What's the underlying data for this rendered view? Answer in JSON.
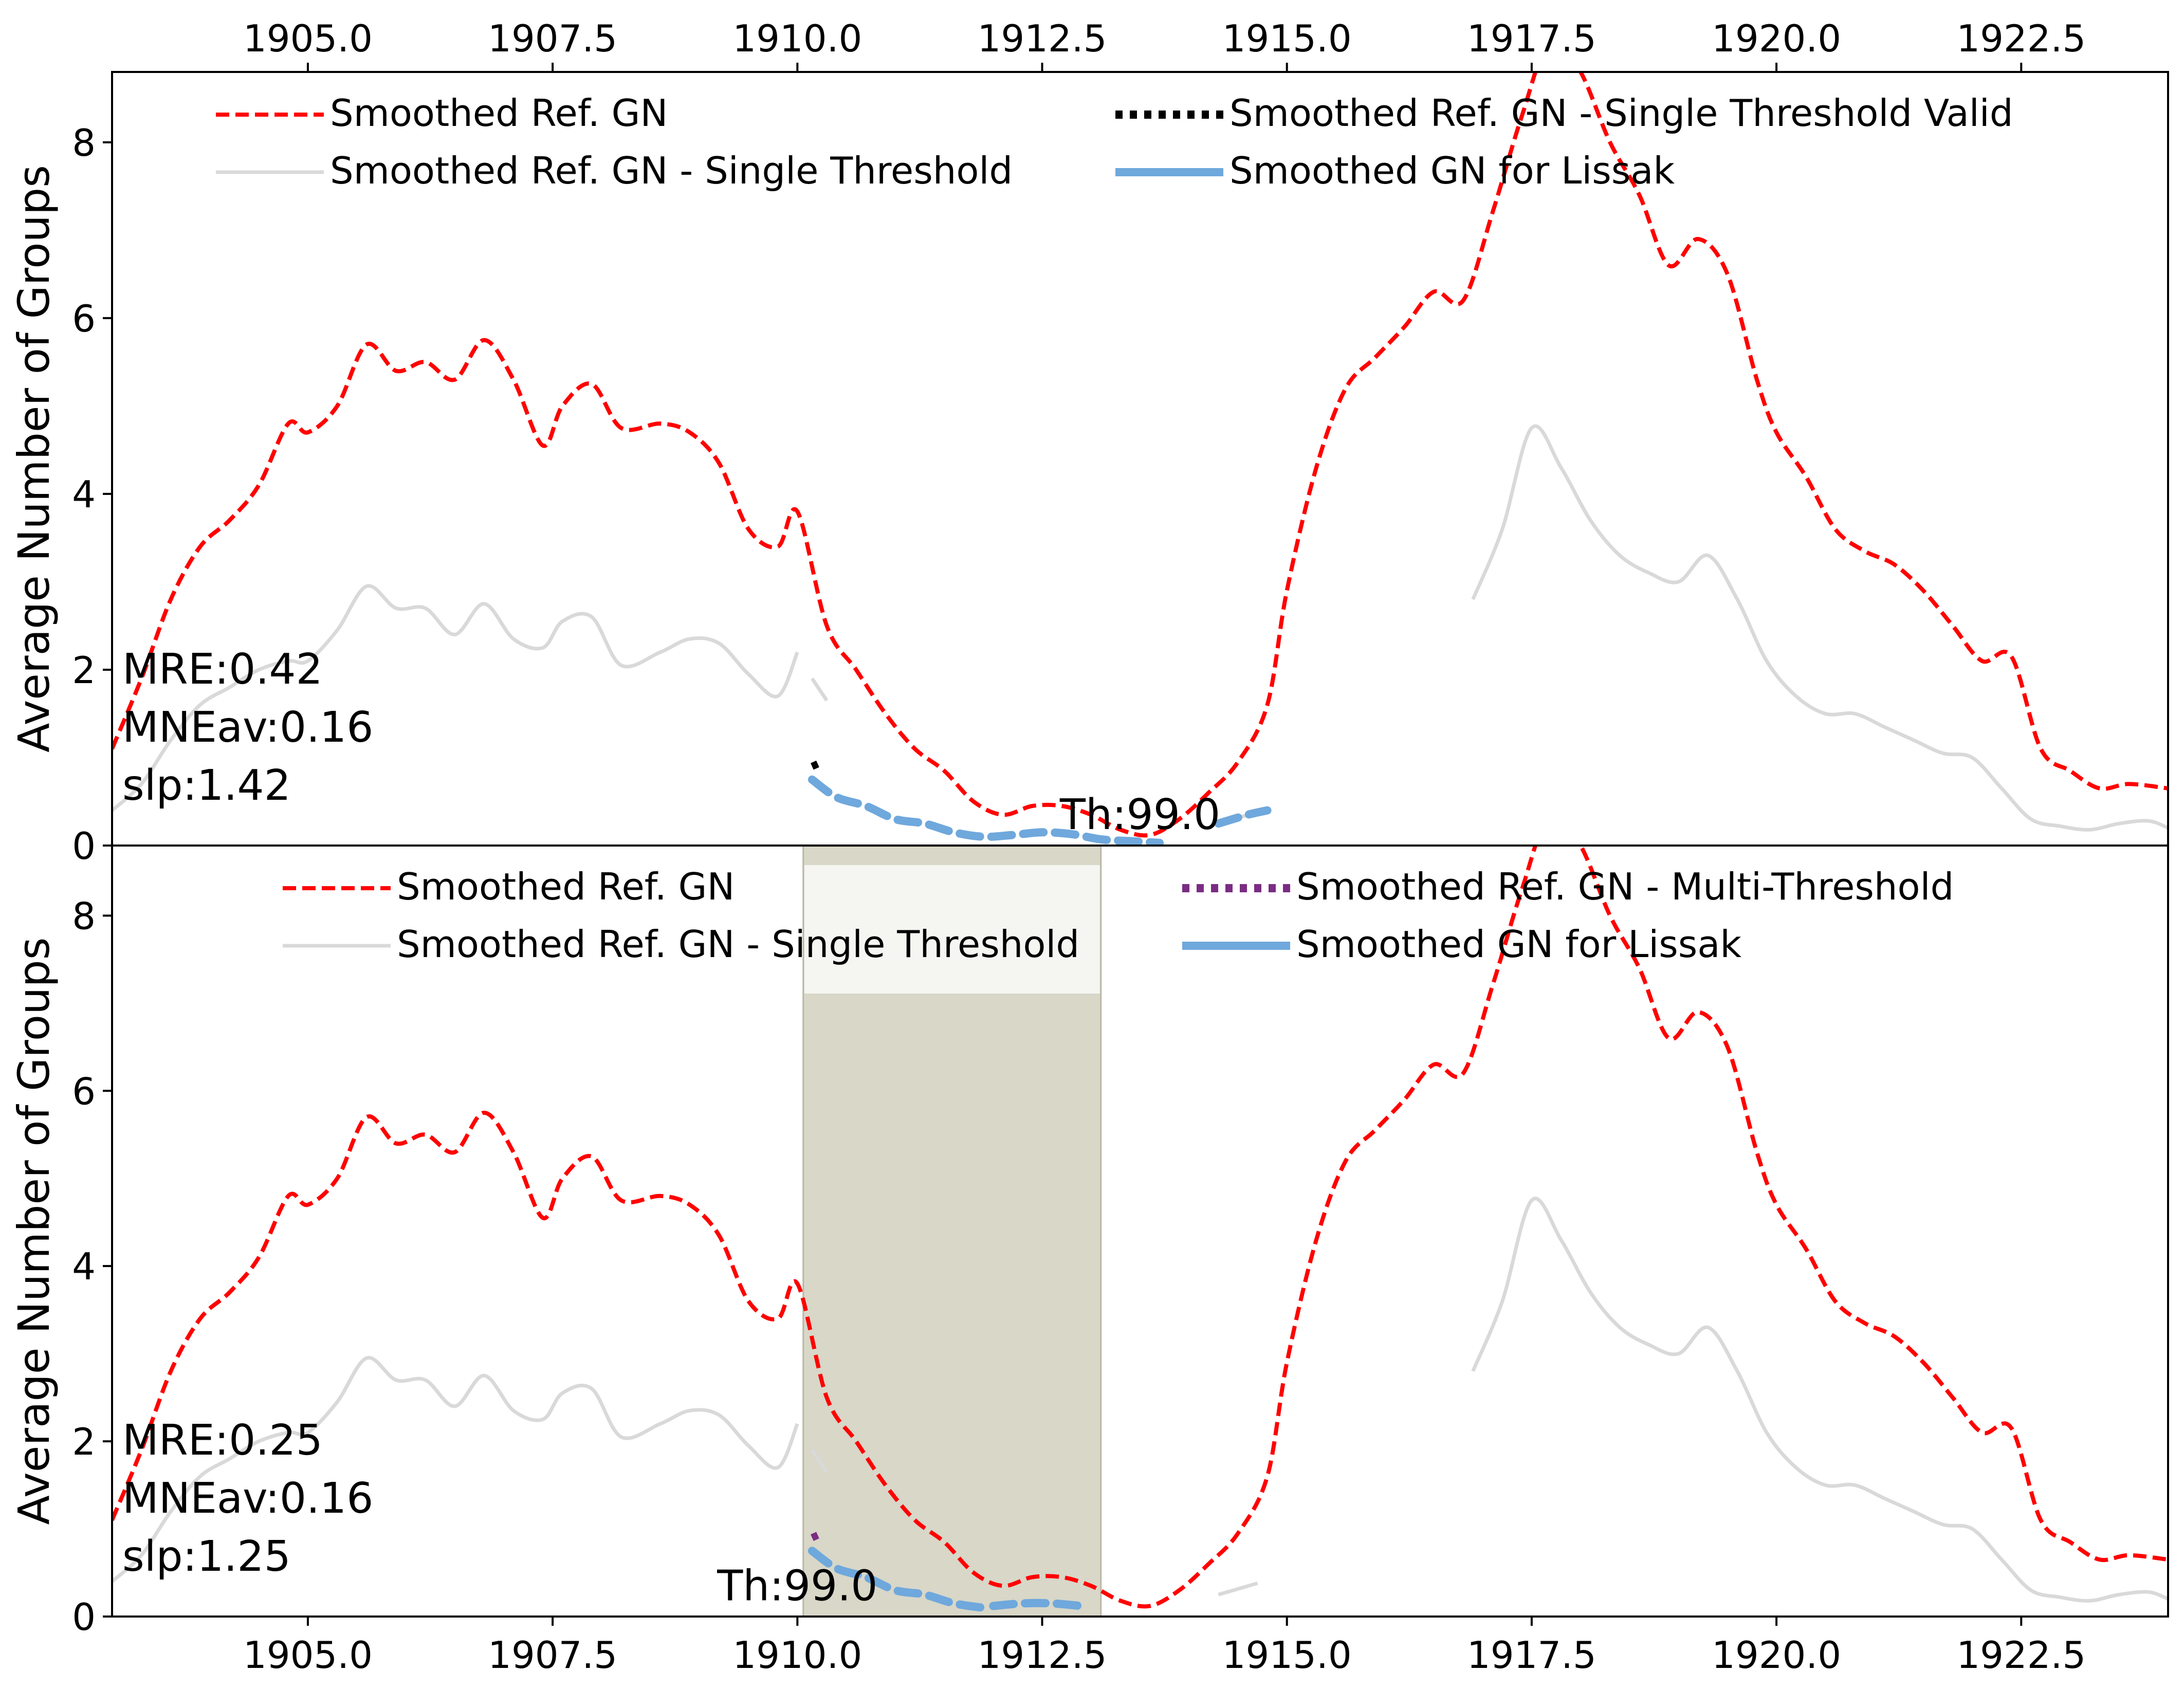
{
  "chart_data": [
    {
      "type": "line",
      "panel": "top",
      "ylabel": "Average Number of Groups",
      "xlim": [
        1903.0,
        1924.0
      ],
      "ylim": [
        0,
        8.8
      ],
      "x_ticks": [
        "1905.0",
        "1907.5",
        "1910.0",
        "1912.5",
        "1915.0",
        "1917.5",
        "1920.0",
        "1922.5"
      ],
      "x_tick_values": [
        1905.0,
        1907.5,
        1910.0,
        1912.5,
        1915.0,
        1917.5,
        1920.0,
        1922.5
      ],
      "x_tick_position": "top",
      "y_ticks": [
        "0",
        "2",
        "4",
        "6",
        "8"
      ],
      "y_tick_values": [
        0,
        2,
        4,
        6,
        8
      ],
      "legend_placement": "top",
      "legend": [
        {
          "label": "Smoothed Ref. GN",
          "color": "#ff0000",
          "style": "dashed"
        },
        {
          "label": "Smoothed Ref. GN - Single Threshold",
          "color": "#d9d9d9",
          "style": "solid"
        },
        {
          "label": "Smoothed Ref. GN - Single Threshold Valid",
          "color": "#000000",
          "style": "dotted"
        },
        {
          "label": "Smoothed GN for Lissak",
          "color": "#6fa8dc",
          "style": "solid"
        }
      ],
      "stats": {
        "mre": "MRE:0.42",
        "mneav": "MNEav:0.16",
        "slp": "slp:1.42"
      },
      "threshold_label": "Th:99.0",
      "threshold_label_pos": [
        1913.5,
        0.35
      ],
      "series": [
        {
          "name": "Smoothed Ref. GN",
          "color": "#ff0000",
          "style": "dashed",
          "x": [
            1903.0,
            1903.3,
            1903.6,
            1903.9,
            1904.2,
            1904.5,
            1904.8,
            1905.0,
            1905.3,
            1905.6,
            1905.9,
            1906.2,
            1906.5,
            1906.8,
            1907.1,
            1907.4,
            1907.6,
            1907.9,
            1908.2,
            1908.6,
            1908.9,
            1909.2,
            1909.5,
            1909.8,
            1910.0,
            1910.3,
            1910.6,
            1910.9,
            1911.2,
            1911.5,
            1911.8,
            1912.1,
            1912.4,
            1912.7,
            1913.0,
            1913.3,
            1913.6,
            1913.9,
            1914.2,
            1914.5,
            1914.8,
            1915.0,
            1915.3,
            1915.6,
            1915.9,
            1916.2,
            1916.5,
            1916.8,
            1917.1,
            1917.4,
            1917.7,
            1918.0,
            1918.3,
            1918.6,
            1918.9,
            1919.2,
            1919.5,
            1919.8,
            1920.0,
            1920.3,
            1920.6,
            1920.9,
            1921.2,
            1921.5,
            1921.8,
            1922.1,
            1922.4,
            1922.7,
            1923.0,
            1923.3,
            1923.6,
            1924.0
          ],
          "y": [
            1.1,
            1.9,
            2.8,
            3.4,
            3.7,
            4.1,
            4.8,
            4.7,
            5.0,
            5.7,
            5.4,
            5.5,
            5.3,
            5.75,
            5.3,
            4.55,
            5.0,
            5.25,
            4.75,
            4.8,
            4.7,
            4.35,
            3.6,
            3.4,
            3.8,
            2.5,
            2.0,
            1.5,
            1.1,
            0.85,
            0.5,
            0.35,
            0.45,
            0.45,
            0.35,
            0.18,
            0.12,
            0.3,
            0.6,
            0.95,
            1.6,
            2.9,
            4.3,
            5.2,
            5.55,
            5.9,
            6.3,
            6.2,
            7.2,
            8.3,
            9.2,
            8.8,
            8.0,
            7.4,
            6.6,
            6.9,
            6.5,
            5.3,
            4.7,
            4.2,
            3.6,
            3.35,
            3.2,
            2.9,
            2.5,
            2.1,
            2.15,
            1.1,
            0.85,
            0.65,
            0.7,
            0.65
          ]
        },
        {
          "name": "Smoothed Ref. GN - Single Threshold",
          "color": "#d9d9d9",
          "style": "solid",
          "segments": [
            {
              "x": [
                1903.0,
                1903.3,
                1903.6,
                1903.9,
                1904.2,
                1904.5,
                1904.8,
                1905.0,
                1905.3,
                1905.6,
                1905.9,
                1906.2,
                1906.5,
                1906.8,
                1907.1,
                1907.4,
                1907.6,
                1907.9,
                1908.2,
                1908.6,
                1908.9,
                1909.2,
                1909.5,
                1909.8,
                1910.0
              ],
              "y": [
                0.4,
                0.7,
                1.2,
                1.6,
                1.8,
                2.0,
                2.1,
                2.1,
                2.45,
                2.95,
                2.7,
                2.7,
                2.4,
                2.75,
                2.35,
                2.25,
                2.55,
                2.6,
                2.05,
                2.2,
                2.35,
                2.3,
                1.95,
                1.7,
                2.2
              ]
            },
            {
              "x": [
                1910.15,
                1910.3
              ],
              "y": [
                1.9,
                1.65
              ]
            },
            {
              "x": [
                1914.3,
                1914.7
              ],
              "y": [
                0.25,
                0.38
              ]
            },
            {
              "x": [
                1916.9,
                1917.2,
                1917.5,
                1917.8,
                1918.1,
                1918.4,
                1918.7,
                1919.0,
                1919.3,
                1919.6,
                1919.9,
                1920.2,
                1920.5,
                1920.8,
                1921.1,
                1921.4,
                1921.7,
                1922.0,
                1922.3,
                1922.6,
                1922.9,
                1923.2,
                1923.5,
                1923.8,
                1924.0
              ],
              "y": [
                2.8,
                3.6,
                4.75,
                4.3,
                3.7,
                3.3,
                3.1,
                3.0,
                3.3,
                2.8,
                2.1,
                1.7,
                1.5,
                1.5,
                1.35,
                1.2,
                1.05,
                1.0,
                0.65,
                0.3,
                0.22,
                0.18,
                0.25,
                0.28,
                0.2
              ]
            }
          ]
        },
        {
          "name": "Smoothed Ref. GN - Single Threshold Valid",
          "color": "#000000",
          "style": "dotted",
          "segments": [
            {
              "x": [
                1910.15,
                1910.25
              ],
              "y": [
                0.9,
                0.95
              ]
            }
          ]
        },
        {
          "name": "Smoothed GN for Lissak",
          "color": "#6fa8dc",
          "style": "dashed-thick",
          "segments": [
            {
              "x": [
                1910.15,
                1910.4,
                1910.7,
                1911.0,
                1911.3,
                1911.6,
                1911.9,
                1912.2,
                1912.5,
                1912.8,
                1913.1,
                1913.4,
                1913.7
              ],
              "y": [
                0.75,
                0.55,
                0.45,
                0.3,
                0.25,
                0.15,
                0.1,
                0.12,
                0.15,
                0.13,
                0.07,
                0.05,
                0.03
              ]
            },
            {
              "x": [
                1914.3,
                1914.6,
                1914.8
              ],
              "y": [
                0.25,
                0.35,
                0.4
              ]
            }
          ]
        }
      ]
    },
    {
      "type": "line",
      "panel": "bottom",
      "ylabel": "Average Number of Groups",
      "xlim": [
        1903.0,
        1924.0
      ],
      "ylim": [
        0,
        8.8
      ],
      "x_ticks": [
        "1905.0",
        "1907.5",
        "1910.0",
        "1912.5",
        "1915.0",
        "1917.5",
        "1920.0",
        "1922.5"
      ],
      "x_tick_values": [
        1905.0,
        1907.5,
        1910.0,
        1912.5,
        1915.0,
        1917.5,
        1920.0,
        1922.5
      ],
      "x_tick_position": "bottom",
      "y_ticks": [
        "0",
        "2",
        "4",
        "6",
        "8"
      ],
      "y_tick_values": [
        0,
        2,
        4,
        6,
        8
      ],
      "legend_placement": "top",
      "legend": [
        {
          "label": "Smoothed Ref. GN",
          "color": "#ff0000",
          "style": "dashed"
        },
        {
          "label": "Smoothed Ref. GN - Single Threshold",
          "color": "#d9d9d9",
          "style": "solid"
        },
        {
          "label": "Smoothed Ref. GN - Multi-Threshold",
          "color": "#7b2c83",
          "style": "dotted"
        },
        {
          "label": "Smoothed GN for Lissak",
          "color": "#6fa8dc",
          "style": "solid"
        }
      ],
      "stats": {
        "mre": "MRE:0.25",
        "mneav": "MNEav:0.16",
        "slp": "slp:1.25"
      },
      "threshold_label": "Th:99.0",
      "threshold_label_pos": [
        1910.0,
        0.35
      ],
      "highlight_interval": {
        "x0": 1910.06,
        "x1": 1913.1,
        "color": "#d8d7c8"
      },
      "series": [
        {
          "name": "Smoothed Ref. GN",
          "color": "#ff0000",
          "style": "dashed",
          "x": [
            1903.0,
            1903.3,
            1903.6,
            1903.9,
            1904.2,
            1904.5,
            1904.8,
            1905.0,
            1905.3,
            1905.6,
            1905.9,
            1906.2,
            1906.5,
            1906.8,
            1907.1,
            1907.4,
            1907.6,
            1907.9,
            1908.2,
            1908.6,
            1908.9,
            1909.2,
            1909.5,
            1909.8,
            1910.0,
            1910.3,
            1910.6,
            1910.9,
            1911.2,
            1911.5,
            1911.8,
            1912.1,
            1912.4,
            1912.7,
            1913.0,
            1913.3,
            1913.6,
            1913.9,
            1914.2,
            1914.5,
            1914.8,
            1915.0,
            1915.3,
            1915.6,
            1915.9,
            1916.2,
            1916.5,
            1916.8,
            1917.1,
            1917.4,
            1917.7,
            1918.0,
            1918.3,
            1918.6,
            1918.9,
            1919.2,
            1919.5,
            1919.8,
            1920.0,
            1920.3,
            1920.6,
            1920.9,
            1921.2,
            1921.5,
            1921.8,
            1922.1,
            1922.4,
            1922.7,
            1923.0,
            1923.3,
            1923.6,
            1924.0
          ],
          "y": [
            1.1,
            1.9,
            2.8,
            3.4,
            3.7,
            4.1,
            4.8,
            4.7,
            5.0,
            5.7,
            5.4,
            5.5,
            5.3,
            5.75,
            5.3,
            4.55,
            5.0,
            5.25,
            4.75,
            4.8,
            4.7,
            4.35,
            3.6,
            3.4,
            3.8,
            2.5,
            2.0,
            1.5,
            1.1,
            0.85,
            0.5,
            0.35,
            0.45,
            0.45,
            0.35,
            0.18,
            0.12,
            0.3,
            0.6,
            0.95,
            1.6,
            2.9,
            4.3,
            5.2,
            5.55,
            5.9,
            6.3,
            6.2,
            7.2,
            8.3,
            9.2,
            8.8,
            8.0,
            7.4,
            6.6,
            6.9,
            6.5,
            5.3,
            4.7,
            4.2,
            3.6,
            3.35,
            3.2,
            2.9,
            2.5,
            2.1,
            2.15,
            1.1,
            0.85,
            0.65,
            0.7,
            0.65
          ]
        },
        {
          "name": "Smoothed Ref. GN - Single Threshold",
          "color": "#d9d9d9",
          "style": "solid",
          "segments": [
            {
              "x": [
                1903.0,
                1903.3,
                1903.6,
                1903.9,
                1904.2,
                1904.5,
                1904.8,
                1905.0,
                1905.3,
                1905.6,
                1905.9,
                1906.2,
                1906.5,
                1906.8,
                1907.1,
                1907.4,
                1907.6,
                1907.9,
                1908.2,
                1908.6,
                1908.9,
                1909.2,
                1909.5,
                1909.8,
                1910.0
              ],
              "y": [
                0.4,
                0.7,
                1.2,
                1.6,
                1.8,
                2.0,
                2.1,
                2.1,
                2.45,
                2.95,
                2.7,
                2.7,
                2.4,
                2.75,
                2.35,
                2.25,
                2.55,
                2.6,
                2.05,
                2.2,
                2.35,
                2.3,
                1.95,
                1.7,
                2.2
              ]
            },
            {
              "x": [
                1910.15,
                1910.3
              ],
              "y": [
                1.9,
                1.65
              ]
            },
            {
              "x": [
                1914.3,
                1914.7
              ],
              "y": [
                0.25,
                0.38
              ]
            },
            {
              "x": [
                1916.9,
                1917.2,
                1917.5,
                1917.8,
                1918.1,
                1918.4,
                1918.7,
                1919.0,
                1919.3,
                1919.6,
                1919.9,
                1920.2,
                1920.5,
                1920.8,
                1921.1,
                1921.4,
                1921.7,
                1922.0,
                1922.3,
                1922.6,
                1922.9,
                1923.2,
                1923.5,
                1923.8,
                1924.0
              ],
              "y": [
                2.8,
                3.6,
                4.75,
                4.3,
                3.7,
                3.3,
                3.1,
                3.0,
                3.3,
                2.8,
                2.1,
                1.7,
                1.5,
                1.5,
                1.35,
                1.2,
                1.05,
                1.0,
                0.65,
                0.3,
                0.22,
                0.18,
                0.25,
                0.28,
                0.2
              ]
            }
          ]
        },
        {
          "name": "Smoothed Ref. GN - Multi-Threshold",
          "color": "#7b2c83",
          "style": "dotted",
          "segments": [
            {
              "x": [
                1910.15,
                1910.25
              ],
              "y": [
                0.9,
                0.95
              ]
            }
          ]
        },
        {
          "name": "Smoothed GN for Lissak",
          "color": "#6fa8dc",
          "style": "dashed-thick",
          "segments": [
            {
              "x": [
                1910.15,
                1910.4,
                1910.7,
                1911.0,
                1911.3,
                1911.6,
                1911.9
              ],
              "y": [
                0.75,
                0.55,
                0.45,
                0.3,
                0.25,
                0.15,
                0.1
              ]
            },
            {
              "x": [
                1912.0,
                1912.3,
                1912.6,
                1912.9
              ],
              "y": [
                0.12,
                0.15,
                0.15,
                0.12
              ]
            }
          ]
        }
      ]
    }
  ]
}
